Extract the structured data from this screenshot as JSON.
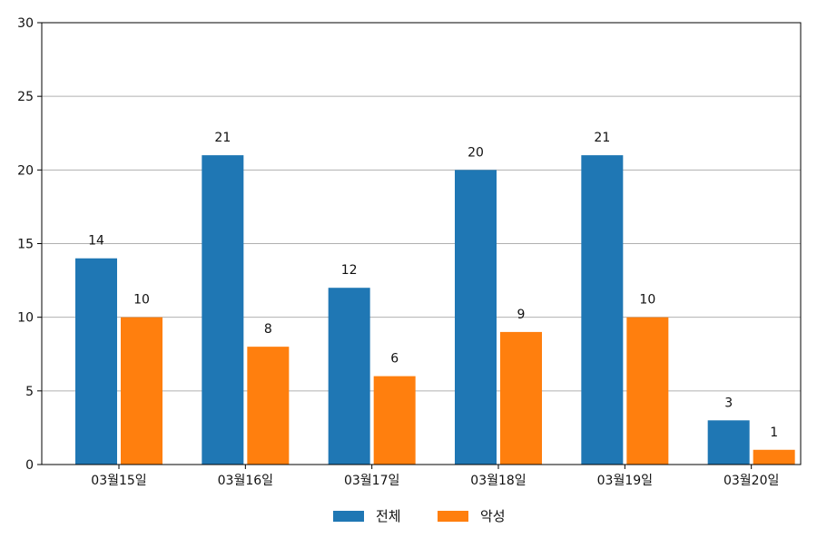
{
  "chart_data": {
    "type": "bar",
    "title": "",
    "xlabel": "",
    "ylabel": "",
    "categories": [
      "03월15일",
      "03월16일",
      "03월17일",
      "03월18일",
      "03월19일",
      "03월20일"
    ],
    "series": [
      {
        "name": "전체",
        "color": "#1f77b4",
        "values": [
          14,
          21,
          12,
          20,
          21,
          3
        ]
      },
      {
        "name": "악성",
        "color": "#ff7f0e",
        "values": [
          10,
          8,
          6,
          9,
          10,
          1
        ]
      }
    ],
    "ylim": [
      0,
      30
    ],
    "yticks": [
      0,
      5,
      10,
      15,
      20,
      25,
      30
    ],
    "grid": "y",
    "legend": "bottom-center",
    "data_labels": true
  }
}
